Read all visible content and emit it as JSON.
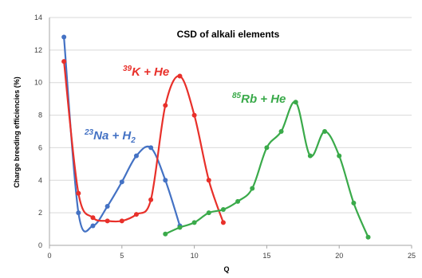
{
  "chart_data": {
    "type": "line",
    "title": "CSD of alkali elements",
    "xlabel": "Q",
    "ylabel": "Charge breeding efficiencies (%)",
    "xlim": [
      0,
      25
    ],
    "ylim": [
      0,
      14
    ],
    "xticks": [
      "0",
      "5",
      "10",
      "15",
      "20",
      "25"
    ],
    "yticks": [
      "0",
      "2",
      "4",
      "6",
      "8",
      "10",
      "12",
      "14"
    ],
    "grid": "horizontal",
    "legend": "none",
    "series": [
      {
        "name": "23Na + H2",
        "color": "#4472c4",
        "label": {
          "mass": "23",
          "element": "Na + H",
          "sub": "2"
        },
        "x": [
          1,
          2,
          3,
          4,
          5,
          6,
          7,
          8,
          9
        ],
        "y": [
          12.8,
          2.0,
          1.2,
          2.4,
          3.9,
          5.5,
          6.0,
          4.0,
          1.2
        ]
      },
      {
        "name": "39K + He",
        "color": "#e8302a",
        "label": {
          "mass": "39",
          "element": "K + He",
          "sub": ""
        },
        "x": [
          1,
          2,
          3,
          4,
          5,
          6,
          7,
          8,
          9,
          10,
          11,
          12
        ],
        "y": [
          11.3,
          3.2,
          1.7,
          1.5,
          1.5,
          1.9,
          2.8,
          8.6,
          10.4,
          8.0,
          4.0,
          1.4
        ]
      },
      {
        "name": "85Rb + He",
        "color": "#3aaa4a",
        "label": {
          "mass": "85",
          "element": "Rb + He",
          "sub": ""
        },
        "x": [
          8,
          9,
          10,
          11,
          12,
          13,
          14,
          15,
          16,
          17,
          18,
          19,
          20,
          21,
          22
        ],
        "y": [
          0.7,
          1.1,
          1.4,
          2.0,
          2.2,
          2.7,
          3.5,
          6.0,
          7.0,
          8.8,
          5.5,
          7.0,
          5.5,
          2.6,
          0.5
        ]
      }
    ]
  }
}
